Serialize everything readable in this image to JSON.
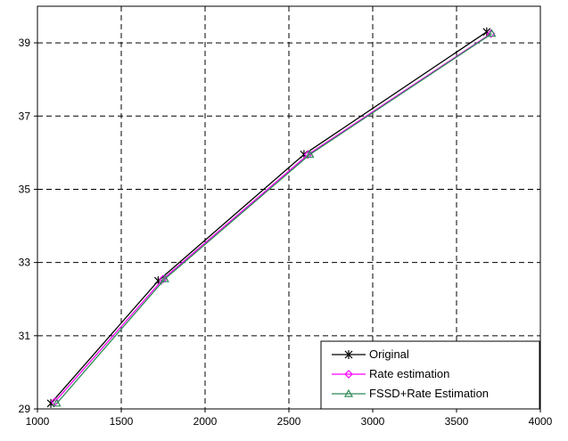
{
  "chart_data": {
    "type": "line",
    "title": "",
    "xlabel": "",
    "ylabel": "",
    "xlim": [
      1000,
      4000
    ],
    "ylim": [
      29,
      40
    ],
    "xticks": [
      1000,
      1500,
      2000,
      2500,
      3000,
      3500,
      4000
    ],
    "yticks": [
      29,
      31,
      33,
      35,
      37,
      39
    ],
    "grid": "dashed",
    "legend_position": "bottom-right",
    "series": [
      {
        "name": "Original",
        "color": "#000000",
        "marker": "asterisk",
        "x": [
          1080,
          1720,
          2590,
          3680
        ],
        "y": [
          29.15,
          32.5,
          35.95,
          39.3
        ]
      },
      {
        "name": "Rate estimation",
        "color": "#ff00ff",
        "marker": "diamond",
        "x": [
          1105,
          1750,
          2615,
          3705
        ],
        "y": [
          29.2,
          32.55,
          35.95,
          39.25
        ]
      },
      {
        "name": "FSSD+Rate Estimation",
        "color": "#2e8b57",
        "marker": "triangle",
        "x": [
          1115,
          1760,
          2625,
          3710
        ],
        "y": [
          29.15,
          32.55,
          35.95,
          39.25
        ]
      }
    ]
  }
}
